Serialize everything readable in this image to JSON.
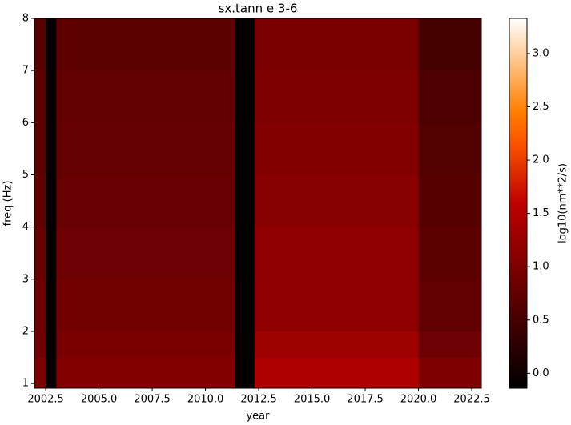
{
  "chart_data": {
    "type": "heatmap",
    "title": "sx.tann e 3-6",
    "xlabel": "year",
    "ylabel": "freq (Hz)",
    "colorbar_label": "log10(nm**2/s)",
    "x_edges": [
      2001.97,
      2002.5,
      2003.0,
      2011.4,
      2012.3,
      2020.0,
      2022.95
    ],
    "y_edges": [
      0.91,
      1.5,
      2,
      3,
      4,
      5,
      6,
      7,
      8
    ],
    "values": [
      [
        1.0,
        -0.1,
        1.05,
        -0.1,
        1.45,
        1.0
      ],
      [
        0.9,
        -0.1,
        0.95,
        -0.1,
        1.3,
        0.85
      ],
      [
        0.85,
        -0.1,
        0.9,
        -0.1,
        1.15,
        0.75
      ],
      [
        0.8,
        -0.1,
        0.85,
        -0.1,
        1.15,
        0.7
      ],
      [
        0.75,
        -0.1,
        0.8,
        -0.1,
        1.1,
        0.65
      ],
      [
        0.7,
        -0.1,
        0.78,
        -0.1,
        1.05,
        0.6
      ],
      [
        0.7,
        -0.1,
        0.75,
        -0.1,
        1.0,
        0.55
      ],
      [
        0.65,
        -0.1,
        0.7,
        -0.1,
        0.95,
        0.5
      ]
    ],
    "xlim": [
      2001.97,
      2022.95
    ],
    "ylim": [
      0.91,
      8
    ],
    "clim": [
      -0.14,
      3.33
    ],
    "xticks": [
      2002.5,
      {
        "value": 2005,
        "label": "2005.0"
      },
      2007.5,
      {
        "value": 2010,
        "label": "2010.0"
      },
      2012.5,
      {
        "value": 2015,
        "label": "2015.0"
      },
      2017.5,
      {
        "value": 2020,
        "label": "2020.0"
      },
      2022.5
    ],
    "yticks": [
      1,
      2,
      3,
      4,
      5,
      6,
      7,
      8
    ],
    "cticks": [
      {
        "value": 0,
        "label": "0.0"
      },
      0.5,
      {
        "value": 1,
        "label": "1.0"
      },
      1.5,
      {
        "value": 2,
        "label": "2.0"
      },
      2.5,
      {
        "value": 3,
        "label": "3.0"
      }
    ]
  }
}
